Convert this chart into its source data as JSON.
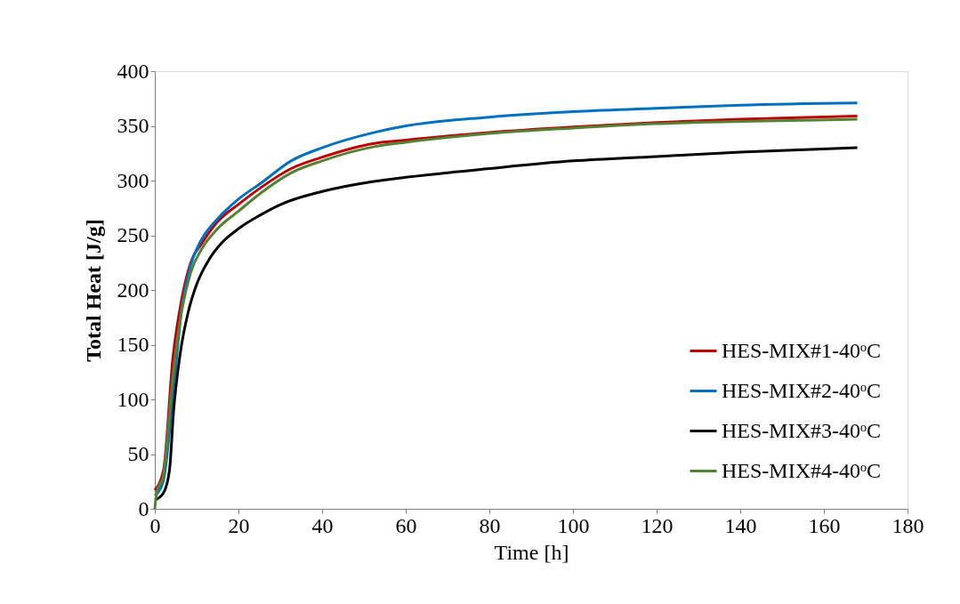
{
  "chart_data": {
    "type": "line",
    "xlabel": "Time [h]",
    "ylabel": "Total Heat [J/g]",
    "xlim": [
      0,
      180
    ],
    "xticks": [
      0,
      20,
      40,
      60,
      80,
      100,
      120,
      140,
      160,
      180
    ],
    "ylim": [
      0,
      400
    ],
    "yticks": [
      0,
      50,
      100,
      150,
      200,
      250,
      300,
      350,
      400
    ],
    "grid": false,
    "legend": "bottom right",
    "line_style": "solid",
    "marker": "none",
    "series": [
      {
        "name": "HES-MIX#1-40ᵒC",
        "color": "#c00000",
        "x": [
          0,
          2.1,
          4.3,
          6.4,
          8.5,
          11.3,
          14.9,
          19.9,
          25.5,
          32.6,
          39.7,
          52.5,
          60,
          80,
          100,
          120,
          140,
          168
        ],
        "values": [
          17,
          36,
          137,
          191,
          224,
          243,
          262,
          278,
          294,
          311,
          321,
          334,
          337,
          344,
          349,
          353,
          356,
          359
        ]
      },
      {
        "name": "HES-MIX#2-40ᵒC",
        "color": "#0070c0",
        "x": [
          0,
          2,
          4.5,
          6.5,
          8.5,
          11,
          15,
          20,
          25.5,
          32.6,
          40,
          52.5,
          60,
          80,
          100,
          120,
          140,
          168
        ],
        "values": [
          12,
          25,
          110,
          185,
          222,
          245,
          265,
          283,
          298,
          318,
          330,
          344,
          350,
          358,
          363,
          366,
          369,
          371
        ]
      },
      {
        "name": "HES-MIX#3-40ᵒC",
        "color": "#000000",
        "x": [
          0,
          2,
          3.5,
          4.5,
          6,
          8,
          10,
          13,
          16,
          20,
          25,
          30,
          40,
          52,
          60,
          80,
          100,
          120,
          140,
          168
        ],
        "values": [
          8,
          14,
          35,
          90,
          140,
          180,
          205,
          228,
          243,
          256,
          268,
          278,
          290,
          299,
          303,
          311,
          318,
          322,
          326,
          330
        ]
      },
      {
        "name": "HES-MIX#4-40ᵒC",
        "color": "#538135",
        "x": [
          0,
          0.4,
          2,
          4.3,
          6.4,
          8.5,
          11.3,
          15,
          20,
          25.5,
          32.6,
          40,
          52.5,
          60,
          80,
          100,
          120,
          140,
          168
        ],
        "values": [
          0,
          14,
          30,
          120,
          180,
          215,
          238,
          256,
          272,
          289,
          307,
          318,
          331,
          335,
          343,
          348,
          352,
          354,
          356
        ]
      }
    ]
  }
}
